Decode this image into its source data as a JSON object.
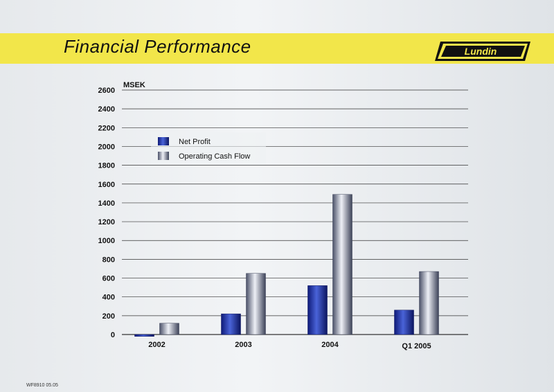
{
  "header": {
    "title": "Financial Performance",
    "logo_text": "Lundin"
  },
  "footer": {
    "code": "WF8910 05.05"
  },
  "colors": {
    "banner": "#f2e64a",
    "net_profit": "#1f2f9a",
    "operating_cash_flow": "#5a627a"
  },
  "chart_data": {
    "type": "bar",
    "ylabel": "MSEK",
    "ylim": [
      0,
      2600
    ],
    "yticks": [
      0,
      200,
      400,
      600,
      800,
      1000,
      1200,
      1400,
      1600,
      1800,
      2000,
      2200,
      2400,
      2600
    ],
    "categories": [
      "2002",
      "2003",
      "2004",
      "Q1 2005"
    ],
    "series": [
      {
        "name": "Net Profit",
        "values": [
          -20,
          220,
          520,
          260
        ]
      },
      {
        "name": "Operating Cash Flow",
        "values": [
          120,
          650,
          1490,
          670
        ]
      }
    ],
    "grid": true,
    "legend": "top-left"
  }
}
